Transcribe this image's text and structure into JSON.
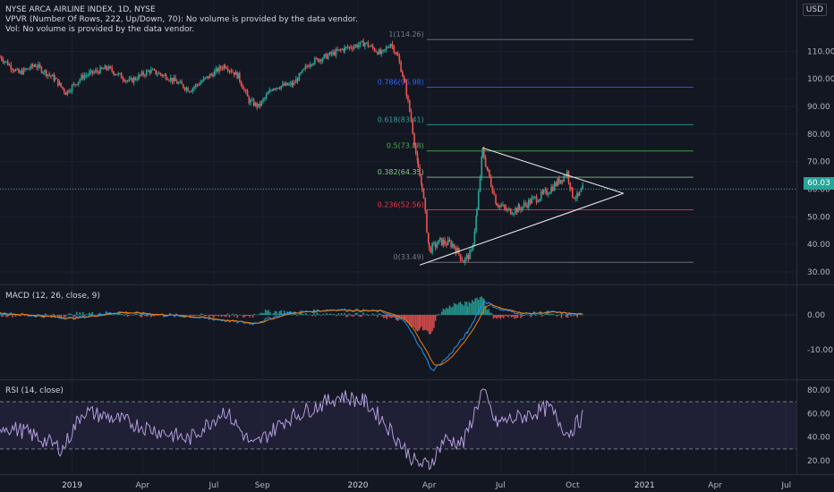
{
  "header": {
    "symbol_line": "NYSE ARCA AIRLINE INDEX, 1D, NYSE",
    "vpvr_line": "VPVR (Number Of Rows, 222, Up/Down, 70): No volume is provided by the data vendor.",
    "vol_line": "Vol: No volume is provided by the data vendor.",
    "currency": "USD"
  },
  "last_price_label": "60.03",
  "panes": {
    "macd_title": "MACD (12, 26, close, 9)",
    "rsi_title": "RSI (14, close)"
  },
  "chart_data": {
    "type": "line",
    "title": "NYSE ARCA AIRLINE INDEX, 1D, NYSE",
    "x_axis": {
      "ticks": [
        "2019",
        "Apr",
        "Jul",
        "Sep",
        "2020",
        "Apr",
        "Jul",
        "Oct",
        "2021",
        "Apr",
        "Jul"
      ],
      "range": [
        "2018-10",
        "2021-07"
      ]
    },
    "price": {
      "ylim": [
        23,
        120
      ],
      "ticks": [
        "110.00",
        "100.00",
        "90.00",
        "80.00",
        "70.00",
        "60.00",
        "50.00",
        "40.00",
        "30.00"
      ],
      "last": 60.03,
      "series_approx": [
        [
          "2018-10-01",
          108
        ],
        [
          "2018-10-25",
          102
        ],
        [
          "2018-11-15",
          105
        ],
        [
          "2018-12-10",
          100
        ],
        [
          "2018-12-24",
          95
        ],
        [
          "2019-01-15",
          101
        ],
        [
          "2019-02-15",
          104
        ],
        [
          "2019-03-15",
          99
        ],
        [
          "2019-04-10",
          103
        ],
        [
          "2019-05-01",
          101
        ],
        [
          "2019-05-31",
          96
        ],
        [
          "2019-06-20",
          100
        ],
        [
          "2019-07-15",
          105
        ],
        [
          "2019-08-01",
          101
        ],
        [
          "2019-08-15",
          92
        ],
        [
          "2019-08-27",
          90
        ],
        [
          "2019-09-15",
          97
        ],
        [
          "2019-10-10",
          98
        ],
        [
          "2019-11-01",
          106
        ],
        [
          "2019-11-20",
          108
        ],
        [
          "2019-12-15",
          111
        ],
        [
          "2020-01-10",
          113
        ],
        [
          "2020-01-31",
          109
        ],
        [
          "2020-02-12",
          113
        ],
        [
          "2020-02-21",
          108
        ],
        [
          "2020-03-01",
          98
        ],
        [
          "2020-03-09",
          85
        ],
        [
          "2020-03-18",
          67
        ],
        [
          "2020-03-23",
          61
        ],
        [
          "2020-04-01",
          38
        ],
        [
          "2020-04-15",
          41
        ],
        [
          "2020-05-01",
          40
        ],
        [
          "2020-05-15",
          34
        ],
        [
          "2020-05-25",
          37
        ],
        [
          "2020-06-01",
          52
        ],
        [
          "2020-06-08",
          74
        ],
        [
          "2020-06-15",
          66
        ],
        [
          "2020-06-26",
          55
        ],
        [
          "2020-07-10",
          52
        ],
        [
          "2020-07-25",
          53
        ],
        [
          "2020-08-10",
          56
        ],
        [
          "2020-08-25",
          58
        ],
        [
          "2020-09-10",
          62
        ],
        [
          "2020-09-24",
          66
        ],
        [
          "2020-10-01",
          58
        ],
        [
          "2020-10-08",
          57
        ],
        [
          "2020-10-14",
          60.03
        ]
      ]
    },
    "fibonacci": [
      {
        "label": "1(114.26)",
        "value": 114.26,
        "color": "#787b86"
      },
      {
        "label": "0.786(96.98)",
        "value": 96.98,
        "color": "#2962ff"
      },
      {
        "label": "0.618(83.41)",
        "value": 83.41,
        "color": "#26a69a"
      },
      {
        "label": "0.5(73.88)",
        "value": 73.88,
        "color": "#4caf50"
      },
      {
        "label": "0.382(64.35)",
        "value": 64.35,
        "color": "#81c784"
      },
      {
        "label": "0.236(52.56)",
        "value": 52.56,
        "color": "#f23645"
      },
      {
        "label": "0(33.49)",
        "value": 33.49,
        "color": "#787b86"
      }
    ],
    "triangle": {
      "upper": [
        [
          "2020-06-08",
          75
        ],
        [
          "2020-12-05",
          58.5
        ]
      ],
      "lower": [
        [
          "2020-03-20",
          32.5
        ],
        [
          "2020-12-05",
          58.5
        ]
      ]
    },
    "macd": {
      "ylim": [
        -17,
        6
      ],
      "ticks": [
        "0.00",
        "-10.00"
      ],
      "series_approx": [
        [
          "2018-10-01",
          0.5
        ],
        [
          "2019-01-01",
          -1
        ],
        [
          "2019-03-01",
          0.8
        ],
        [
          "2019-06-01",
          -0.5
        ],
        [
          "2019-08-20",
          -2.5
        ],
        [
          "2019-10-01",
          0.5
        ],
        [
          "2019-12-01",
          1.5
        ],
        [
          "2020-02-01",
          1
        ],
        [
          "2020-03-01",
          -2
        ],
        [
          "2020-03-20",
          -9
        ],
        [
          "2020-04-05",
          -16
        ],
        [
          "2020-04-25",
          -12
        ],
        [
          "2020-05-20",
          -5
        ],
        [
          "2020-06-10",
          4
        ],
        [
          "2020-07-01",
          1.5
        ],
        [
          "2020-08-01",
          0.3
        ],
        [
          "2020-09-01",
          0.8
        ],
        [
          "2020-10-14",
          0
        ]
      ],
      "signal_color": "#f57c00",
      "macd_color": "#2196f3"
    },
    "rsi": {
      "ylim": [
        10,
        85
      ],
      "ticks": [
        "80.00",
        "60.00",
        "40.00",
        "20.00"
      ],
      "bands": [
        70,
        30
      ],
      "series_approx": [
        [
          "2018-10-01",
          50
        ],
        [
          "2018-11-01",
          45
        ],
        [
          "2018-12-20",
          30
        ],
        [
          "2019-01-15",
          62
        ],
        [
          "2019-03-01",
          55
        ],
        [
          "2019-05-30",
          38
        ],
        [
          "2019-07-15",
          63
        ],
        [
          "2019-08-20",
          32
        ],
        [
          "2019-10-01",
          55
        ],
        [
          "2019-12-10",
          75
        ],
        [
          "2020-01-10",
          70
        ],
        [
          "2020-02-01",
          55
        ],
        [
          "2020-03-01",
          30
        ],
        [
          "2020-03-15",
          18
        ],
        [
          "2020-04-01",
          16
        ],
        [
          "2020-04-20",
          38
        ],
        [
          "2020-05-15",
          35
        ],
        [
          "2020-06-08",
          80
        ],
        [
          "2020-06-25",
          52
        ],
        [
          "2020-08-01",
          58
        ],
        [
          "2020-09-01",
          65
        ],
        [
          "2020-09-25",
          43
        ],
        [
          "2020-10-14",
          57
        ]
      ]
    }
  }
}
